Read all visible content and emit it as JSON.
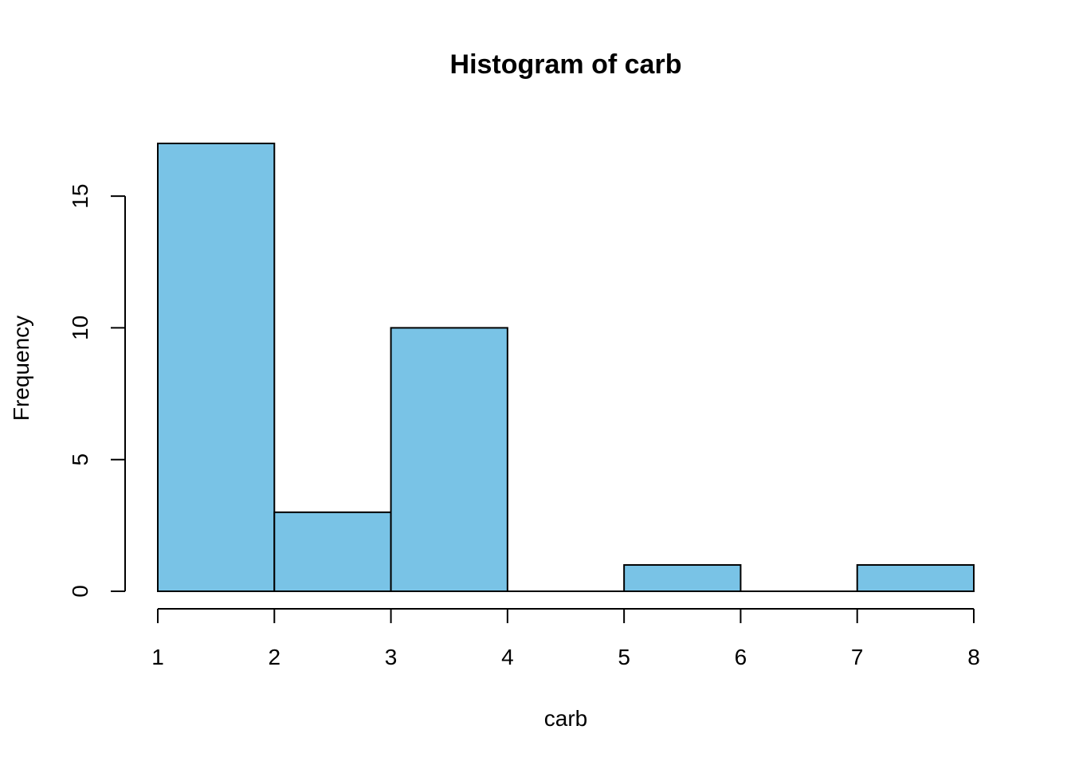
{
  "chart_data": {
    "type": "bar",
    "title": "Histogram of  carb",
    "xlabel": "carb",
    "ylabel": "Frequency",
    "bins": [
      {
        "x0": 1,
        "x1": 2,
        "count": 17
      },
      {
        "x0": 2,
        "x1": 3,
        "count": 3
      },
      {
        "x0": 3,
        "x1": 4,
        "count": 10
      },
      {
        "x0": 4,
        "x1": 5,
        "count": 0
      },
      {
        "x0": 5,
        "x1": 6,
        "count": 1
      },
      {
        "x0": 6,
        "x1": 7,
        "count": 0
      },
      {
        "x0": 7,
        "x1": 8,
        "count": 1
      }
    ],
    "xlim": [
      1,
      8
    ],
    "ylim": [
      0,
      17
    ],
    "x_ticks": [
      "1",
      "2",
      "3",
      "4",
      "5",
      "6",
      "7",
      "8"
    ],
    "y_ticks": [
      "0",
      "5",
      "10",
      "15"
    ],
    "bar_color": "#79C3E6",
    "grid": false,
    "legend": "none"
  }
}
